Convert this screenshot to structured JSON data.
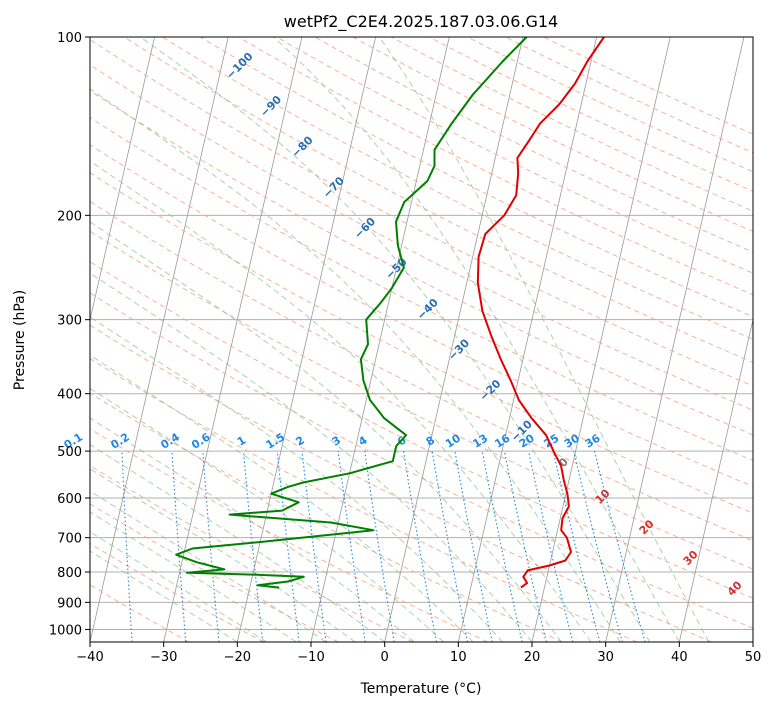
{
  "chart_data": {
    "type": "line",
    "title": "wetPf2_C2E4.2025.187.03.06.G14",
    "xlabel": "Temperature (°C)",
    "ylabel": "Pressure (hPa)",
    "xlim": [
      -40,
      50
    ],
    "ylim": [
      1050,
      100
    ],
    "y_scale": "log",
    "x_ticks": [
      "−40",
      "−30",
      "−20",
      "−10",
      "0",
      "10",
      "20",
      "30",
      "40",
      "50"
    ],
    "y_ticks": [
      "100",
      "200",
      "300",
      "400",
      "500",
      "600",
      "700",
      "800",
      "900",
      "1000"
    ],
    "grid": true,
    "series": [
      {
        "color": "#e00000",
        "points": [
          [
            16.8,
            850
          ],
          [
            17.5,
            835
          ],
          [
            16.8,
            815
          ],
          [
            17.2,
            795
          ],
          [
            20,
            780
          ],
          [
            22,
            765
          ],
          [
            22.5,
            740
          ],
          [
            21.5,
            700
          ],
          [
            20.5,
            680
          ],
          [
            20.3,
            650
          ],
          [
            20.8,
            620
          ],
          [
            20.2,
            590
          ],
          [
            19.3,
            560
          ],
          [
            18.5,
            530
          ],
          [
            17,
            500
          ],
          [
            15.5,
            470
          ],
          [
            13,
            440
          ],
          [
            10.7,
            410
          ],
          [
            9,
            380
          ],
          [
            7,
            350
          ],
          [
            5,
            320
          ],
          [
            3,
            290
          ],
          [
            1.5,
            260
          ],
          [
            0.8,
            235
          ],
          [
            1,
            215
          ],
          [
            3,
            200
          ],
          [
            4,
            185
          ],
          [
            3.6,
            170
          ],
          [
            3,
            160
          ],
          [
            4,
            150
          ],
          [
            5,
            140
          ],
          [
            7,
            130
          ],
          [
            8.5,
            120
          ],
          [
            9.5,
            110
          ],
          [
            11,
            100
          ]
        ]
      },
      {
        "color": "#008000",
        "points": [
          [
            -16,
            850
          ],
          [
            -19,
            842
          ],
          [
            -15,
            830
          ],
          [
            -13,
            815
          ],
          [
            -20,
            808
          ],
          [
            -29,
            802
          ],
          [
            -24,
            792
          ],
          [
            -28,
            770
          ],
          [
            -31,
            748
          ],
          [
            -29,
            730
          ],
          [
            -19,
            710
          ],
          [
            -5,
            680
          ],
          [
            -11,
            660
          ],
          [
            -25,
            640
          ],
          [
            -18,
            630
          ],
          [
            -16,
            610
          ],
          [
            -20,
            590
          ],
          [
            -18,
            575
          ],
          [
            -16,
            565
          ],
          [
            -10,
            545
          ],
          [
            -4.5,
            520
          ],
          [
            -4.5,
            490
          ],
          [
            -3.5,
            470
          ],
          [
            -7,
            440
          ],
          [
            -9.5,
            410
          ],
          [
            -11,
            380
          ],
          [
            -12,
            350
          ],
          [
            -11.5,
            330
          ],
          [
            -12.5,
            300
          ],
          [
            -11,
            280
          ],
          [
            -10,
            265
          ],
          [
            -9,
            245
          ],
          [
            -10.5,
            225
          ],
          [
            -11.5,
            205
          ],
          [
            -11,
            190
          ],
          [
            -8.5,
            175
          ],
          [
            -8,
            165
          ],
          [
            -8.5,
            155
          ],
          [
            -7,
            140
          ],
          [
            -5,
            125
          ],
          [
            -2,
            110
          ],
          [
            0.5,
            100
          ]
        ]
      }
    ],
    "dry_adiabat_labels": [
      "−100",
      "−90",
      "−80",
      "−70",
      "−60",
      "−50",
      "−40",
      "−30",
      "−20",
      "−10",
      "0",
      "10",
      "20",
      "30",
      "40"
    ],
    "mixing_ratio_labels": [
      "0.1",
      "0.2",
      "0.4",
      "0.6",
      "1",
      "1.5",
      "2",
      "3",
      "4",
      "6",
      "8",
      "10",
      "13",
      "16",
      "20",
      "25",
      "30",
      "36"
    ],
    "colors": {
      "temperature": "#e00000",
      "dewpoint": "#008000",
      "dry_adiabat": "#f4a582",
      "moist_adiabat": "#8fbc8f",
      "mixing_ratio": "#1e88e5",
      "isotherm": "#999999"
    }
  }
}
